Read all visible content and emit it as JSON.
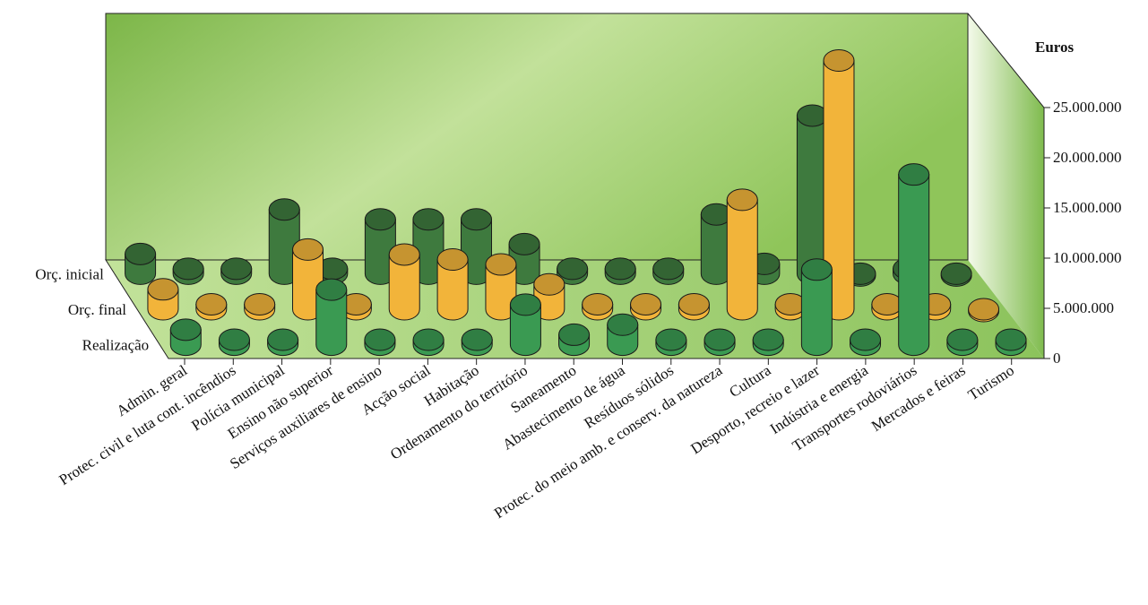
{
  "chart_data": {
    "type": "bar",
    "ylabel": "Euros",
    "ylim": [
      0,
      25000000
    ],
    "y_ticks": [
      "0",
      "5.000.000",
      "10.000.000",
      "15.000.000",
      "20.000.000",
      "25.000.000"
    ],
    "grid": false,
    "colors": {
      "Orç. inicial": "#3e7a3e",
      "Orç. final": "#f2b43a",
      "Realização": "#3a9a52",
      "wall_light": "#f4faea",
      "wall_dark": "#7cb648",
      "floor": "#a6d27a"
    },
    "categories": [
      "Admin. geral",
      "Protec. civil e luta cont. incêndios",
      "Polícia municipal",
      "Ensino não superior",
      "Serviços auxiliares de ensino",
      "Acção social",
      "Habitação",
      "Ordenamento do território",
      "Saneamento",
      "Abastecimento de água",
      "Resíduos sólidos",
      "Protec. do meio  amb. e conserv. da natureza",
      "Cultura",
      "Desporto, recreio e lazer",
      "Indústria e energia",
      "Transportes rodoviários",
      "Mercados e feiras",
      "Turismo"
    ],
    "series": [
      {
        "name": "Orç. inicial",
        "values": [
          2000000,
          500000,
          500000,
          6500000,
          500000,
          5500000,
          5500000,
          5500000,
          3000000,
          500000,
          500000,
          500000,
          6000000,
          1000000,
          16000000,
          0,
          500000,
          0
        ]
      },
      {
        "name": "Orç. final",
        "values": [
          2000000,
          500000,
          500000,
          6000000,
          500000,
          5500000,
          5000000,
          4500000,
          2500000,
          500000,
          500000,
          500000,
          11000000,
          500000,
          25000000,
          500000,
          500000,
          0
        ]
      },
      {
        "name": "Realização",
        "values": [
          1500000,
          500000,
          500000,
          5500000,
          500000,
          500000,
          500000,
          4000000,
          1000000,
          2000000,
          500000,
          500000,
          500000,
          7500000,
          500000,
          17000000,
          500000,
          500000
        ]
      }
    ]
  }
}
